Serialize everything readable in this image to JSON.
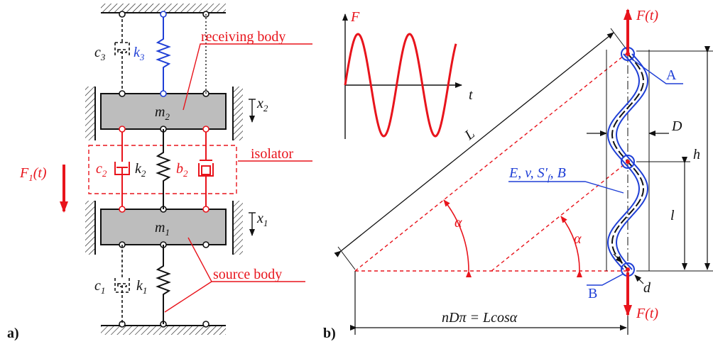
{
  "colors": {
    "red": "#e8141c",
    "blue": "#1f3fd6",
    "black": "#111111",
    "mass_fill": "#bdbdbd"
  },
  "panel_a": {
    "tag": "a)",
    "receiving_body": "receiving body",
    "isolator": "isolator",
    "source_body": "source body",
    "m2": "m",
    "m2_sub": "2",
    "m1": "m",
    "m1_sub": "1",
    "k3": "k",
    "k3_sub": "3",
    "c3": "c",
    "c3_sub": "3",
    "k2": "k",
    "k2_sub": "2",
    "c2": "c",
    "c2_sub": "2",
    "b2": "b",
    "b2_sub": "2",
    "k1": "k",
    "k1_sub": "1",
    "c1": "c",
    "c1_sub": "1",
    "x2": "x",
    "x2_sub": "2",
    "x1": "x",
    "x1_sub": "1",
    "force": "F",
    "force_sub": "1",
    "force_arg": "(t)"
  },
  "panel_b": {
    "tag": "b)",
    "graph_y": "F",
    "graph_x": "t",
    "force_top": "F(t)",
    "force_bottom": "F(t)",
    "point_a": "A",
    "point_b": "B",
    "material": "E, v, S′",
    "material_sub": "f",
    "material_end": ", B",
    "length_L": "L",
    "diameter_D": "D",
    "height_h": "h",
    "pitch_l": "l",
    "wire_d": "d",
    "alpha": "α",
    "formula": "nDπ = Lcosα"
  }
}
